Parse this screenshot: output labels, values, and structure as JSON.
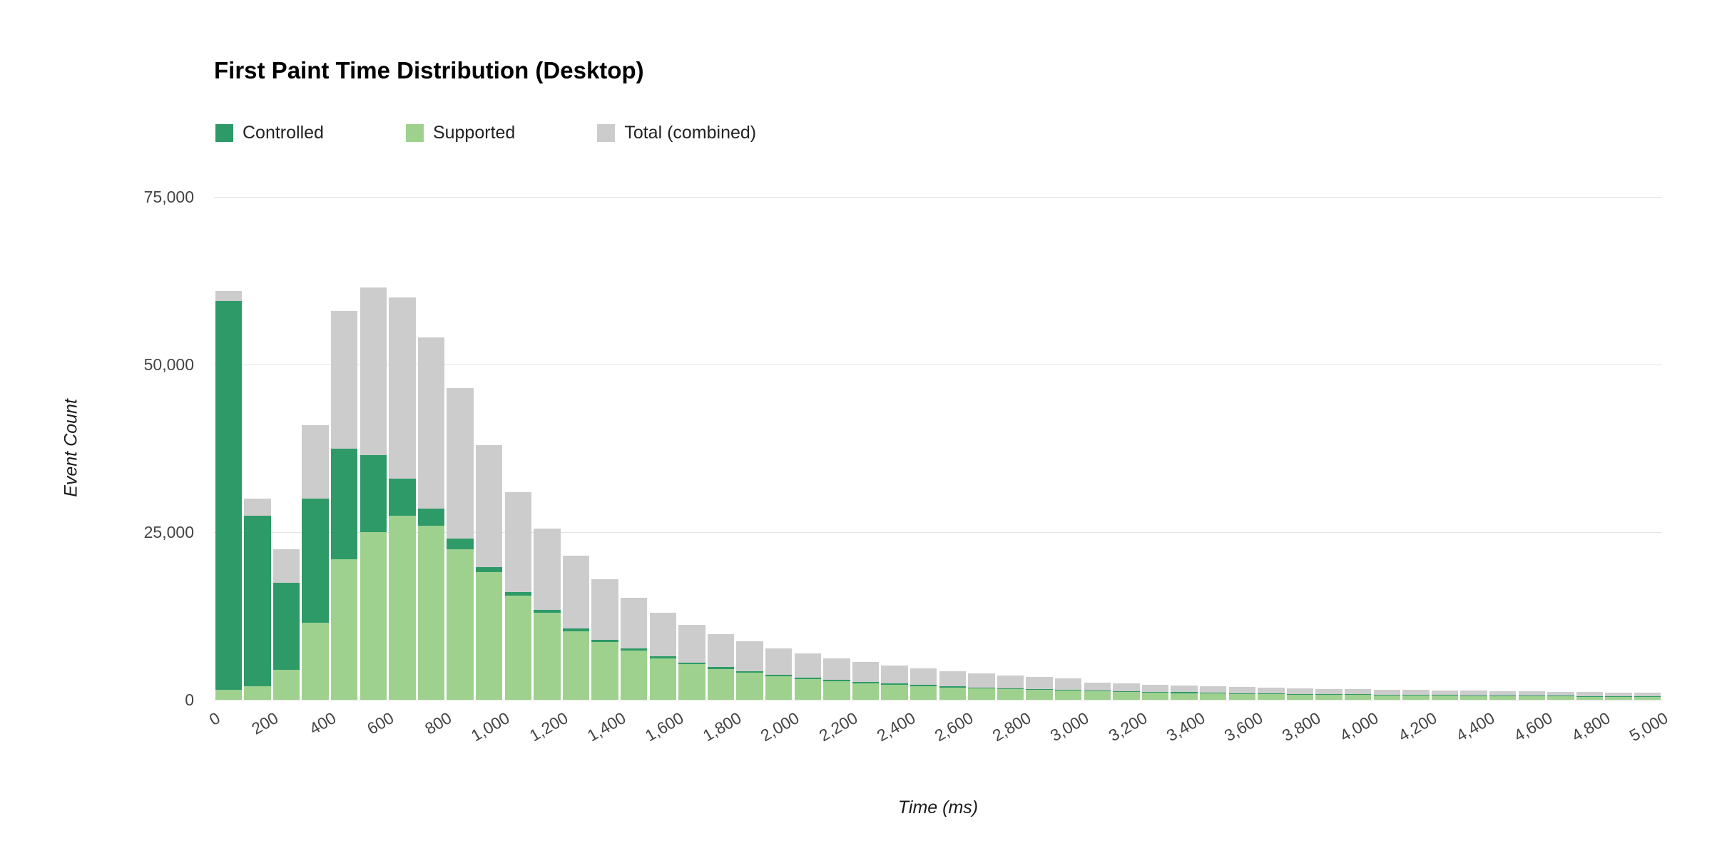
{
  "chart_data": {
    "type": "bar",
    "subtype": "stacked-histogram-with-total-backdrop",
    "title": "First Paint Time Distribution (Desktop)",
    "xlabel": "Time (ms)",
    "ylabel": "Event Count",
    "bin_width": 100,
    "x_range": [
      0,
      5000
    ],
    "ylim": [
      0,
      75000
    ],
    "grid": "horizontal-major",
    "legend_position": "top",
    "background_color": "#ffffff",
    "gridline_color": "#e4e4e4",
    "tick_label_color": "#444444",
    "yticks": [
      {
        "value": 0,
        "label": "0"
      },
      {
        "value": 25000,
        "label": "25,000"
      },
      {
        "value": 50000,
        "label": "50,000"
      },
      {
        "value": 75000,
        "label": "75,000"
      }
    ],
    "xticks": [
      {
        "value": 0,
        "label": "0"
      },
      {
        "value": 200,
        "label": "200"
      },
      {
        "value": 400,
        "label": "400"
      },
      {
        "value": 600,
        "label": "600"
      },
      {
        "value": 800,
        "label": "800"
      },
      {
        "value": 1000,
        "label": "1,000"
      },
      {
        "value": 1200,
        "label": "1,200"
      },
      {
        "value": 1400,
        "label": "1,400"
      },
      {
        "value": 1600,
        "label": "1,600"
      },
      {
        "value": 1800,
        "label": "1,800"
      },
      {
        "value": 2000,
        "label": "2,000"
      },
      {
        "value": 2200,
        "label": "2,200"
      },
      {
        "value": 2400,
        "label": "2,400"
      },
      {
        "value": 2600,
        "label": "2,600"
      },
      {
        "value": 2800,
        "label": "2,800"
      },
      {
        "value": 3000,
        "label": "3,000"
      },
      {
        "value": 3200,
        "label": "3,200"
      },
      {
        "value": 3400,
        "label": "3,400"
      },
      {
        "value": 3600,
        "label": "3,600"
      },
      {
        "value": 3800,
        "label": "3,800"
      },
      {
        "value": 4000,
        "label": "4,000"
      },
      {
        "value": 4200,
        "label": "4,200"
      },
      {
        "value": 4400,
        "label": "4,400"
      },
      {
        "value": 4600,
        "label": "4,600"
      },
      {
        "value": 4800,
        "label": "4,800"
      },
      {
        "value": 5000,
        "label": "5,000"
      }
    ],
    "bin_starts": [
      0,
      100,
      200,
      300,
      400,
      500,
      600,
      700,
      800,
      900,
      1000,
      1100,
      1200,
      1300,
      1400,
      1500,
      1600,
      1700,
      1800,
      1900,
      2000,
      2100,
      2200,
      2300,
      2400,
      2500,
      2600,
      2700,
      2800,
      2900,
      3000,
      3100,
      3200,
      3300,
      3400,
      3500,
      3600,
      3700,
      3800,
      3900,
      4000,
      4100,
      4200,
      4300,
      4400,
      4500,
      4600,
      4700,
      4800,
      4900
    ],
    "series": [
      {
        "name": "Controlled",
        "role": "controlled",
        "color": "#2e9a68",
        "values": [
          58000,
          25500,
          13000,
          18500,
          16500,
          11500,
          5500,
          2500,
          1500,
          800,
          550,
          450,
          400,
          360,
          330,
          300,
          280,
          260,
          240,
          220,
          200,
          190,
          180,
          170,
          160,
          150,
          145,
          140,
          135,
          130,
          125,
          120,
          115,
          110,
          108,
          105,
          102,
          100,
          98,
          96,
          94,
          92,
          90,
          88,
          86,
          84,
          82,
          80,
          78,
          76
        ]
      },
      {
        "name": "Supported",
        "role": "supported",
        "color": "#9fd18e",
        "values": [
          1500,
          2000,
          4500,
          11500,
          21000,
          25000,
          27500,
          26000,
          22500,
          19000,
          15500,
          13000,
          10200,
          8600,
          7300,
          6200,
          5300,
          4600,
          4000,
          3500,
          3100,
          2800,
          2500,
          2250,
          2050,
          1850,
          1700,
          1550,
          1450,
          1350,
          1250,
          1150,
          1080,
          1010,
          950,
          900,
          850,
          800,
          760,
          720,
          680,
          650,
          620,
          590,
          560,
          540,
          520,
          500,
          480,
          460
        ]
      },
      {
        "name": "Total (combined)",
        "role": "total",
        "color": "#cccccc",
        "values": [
          61000,
          30000,
          22500,
          41000,
          58000,
          61500,
          60000,
          54000,
          46500,
          38000,
          31000,
          25500,
          21500,
          18000,
          15200,
          13000,
          11200,
          9800,
          8700,
          7700,
          6900,
          6200,
          5600,
          5100,
          4700,
          4300,
          3950,
          3650,
          3400,
          3150,
          2600,
          2400,
          2250,
          2100,
          2000,
          1900,
          1800,
          1700,
          1600,
          1550,
          1500,
          1450,
          1400,
          1350,
          1300,
          1250,
          1200,
          1150,
          1100,
          1050
        ]
      }
    ]
  }
}
